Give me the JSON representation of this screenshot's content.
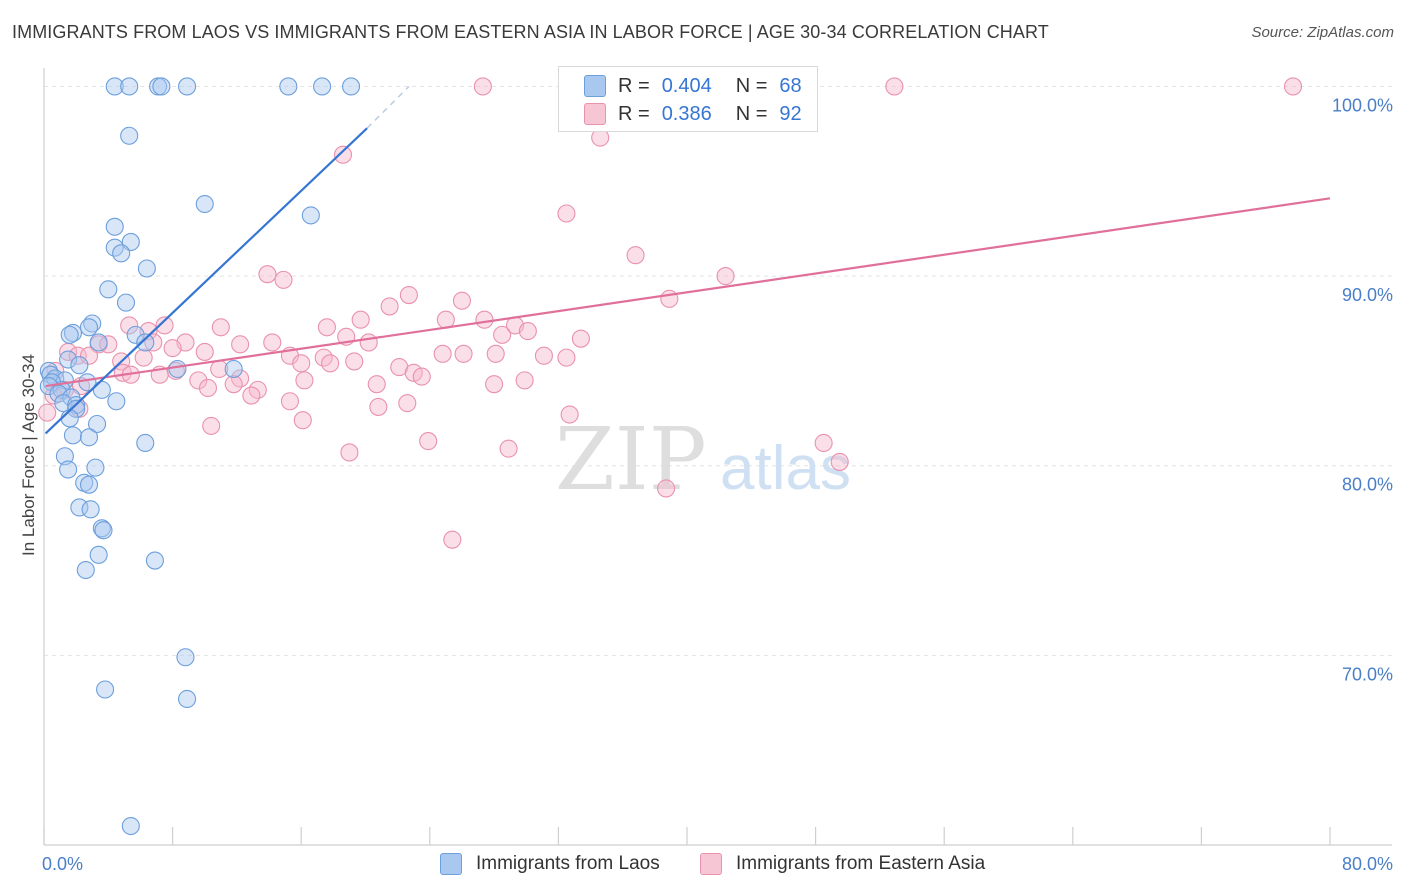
{
  "header": {
    "title": "IMMIGRANTS FROM LAOS VS IMMIGRANTS FROM EASTERN ASIA IN LABOR FORCE | AGE 30-34 CORRELATION CHART",
    "source": "Source: ZipAtlas.com"
  },
  "legend": {
    "r_label": "R =",
    "n_label": "N =",
    "series1": {
      "r": "0.404",
      "n": "68"
    },
    "series2": {
      "r": "0.386",
      "n": "92"
    }
  },
  "watermark": {
    "part1": "ZIP",
    "part2": "atlas"
  },
  "colors": {
    "laos_fill": "#a9c8f0",
    "laos_stroke": "#6c9fdc",
    "laos_line": "#3676d3",
    "easia_fill": "#f7b8cb",
    "easia_stroke": "#e992ad",
    "easia_line": "#e0709a",
    "tick_text": "#4a7fc8"
  },
  "chart_data": {
    "type": "scatter",
    "title": "IMMIGRANTS FROM LAOS VS IMMIGRANTS FROM EASTERN ASIA IN LABOR FORCE | AGE 30-34 CORRELATION CHART",
    "xlabel": "",
    "ylabel": "In Labor Force | Age 30-34",
    "xlim": [
      0,
      80
    ],
    "ylim": [
      60,
      101.5
    ],
    "x_tick_labels": {
      "min": "0.0%",
      "max": "80.0%"
    },
    "y_ticks": [
      {
        "value": 100,
        "label": "100.0%"
      },
      {
        "value": 90,
        "label": "90.0%"
      },
      {
        "value": 80,
        "label": "80.0%"
      },
      {
        "value": 70,
        "label": "70.0%"
      }
    ],
    "series": [
      {
        "name": "Immigrants from Laos",
        "r": 0.404,
        "n": 68,
        "trend": {
          "x0": 0.1,
          "y0": 81.7,
          "x1": 20.1,
          "y1": 97.8,
          "dash_to_x": 22.7,
          "dash_to_y": 100.0
        },
        "points": [
          [
            4.4,
            100.0
          ],
          [
            5.3,
            100.0
          ],
          [
            7.1,
            100.0
          ],
          [
            7.3,
            100.0
          ],
          [
            8.9,
            100.0
          ],
          [
            15.2,
            100.0
          ],
          [
            17.3,
            100.0
          ],
          [
            19.1,
            100.0
          ],
          [
            5.3,
            97.4
          ],
          [
            10.0,
            93.8
          ],
          [
            16.6,
            93.2
          ],
          [
            4.4,
            92.6
          ],
          [
            5.4,
            91.8
          ],
          [
            4.4,
            91.5
          ],
          [
            4.8,
            91.2
          ],
          [
            6.4,
            90.4
          ],
          [
            4.0,
            89.3
          ],
          [
            5.1,
            88.6
          ],
          [
            3.0,
            87.5
          ],
          [
            2.8,
            87.3
          ],
          [
            1.8,
            87.0
          ],
          [
            1.6,
            86.9
          ],
          [
            5.7,
            86.9
          ],
          [
            3.4,
            86.5
          ],
          [
            6.3,
            86.5
          ],
          [
            1.5,
            85.6
          ],
          [
            2.2,
            85.3
          ],
          [
            8.3,
            85.1
          ],
          [
            11.8,
            85.1
          ],
          [
            0.3,
            85.0
          ],
          [
            0.4,
            84.8
          ],
          [
            0.7,
            84.6
          ],
          [
            1.3,
            84.5
          ],
          [
            0.5,
            84.4
          ],
          [
            0.3,
            84.2
          ],
          [
            1.1,
            84.0
          ],
          [
            2.7,
            84.4
          ],
          [
            3.6,
            84.0
          ],
          [
            0.9,
            83.8
          ],
          [
            1.7,
            83.6
          ],
          [
            1.2,
            83.3
          ],
          [
            4.5,
            83.4
          ],
          [
            2.0,
            83.2
          ],
          [
            2.0,
            83.0
          ],
          [
            1.6,
            82.5
          ],
          [
            3.3,
            82.2
          ],
          [
            1.8,
            81.6
          ],
          [
            2.8,
            81.5
          ],
          [
            6.3,
            81.2
          ],
          [
            1.3,
            80.5
          ],
          [
            1.5,
            79.8
          ],
          [
            3.2,
            79.9
          ],
          [
            2.5,
            79.1
          ],
          [
            2.8,
            79.0
          ],
          [
            2.2,
            77.8
          ],
          [
            2.9,
            77.7
          ],
          [
            3.6,
            76.7
          ],
          [
            3.7,
            76.6
          ],
          [
            3.4,
            75.3
          ],
          [
            6.9,
            75.0
          ],
          [
            2.6,
            74.5
          ],
          [
            8.8,
            69.9
          ],
          [
            3.8,
            68.2
          ],
          [
            8.9,
            67.7
          ],
          [
            5.4,
            61.0
          ]
        ]
      },
      {
        "name": "Immigrants from Eastern Asia",
        "r": 0.386,
        "n": 92,
        "trend": {
          "x0": 0.1,
          "y0": 84.2,
          "x1": 80.0,
          "y1": 94.1
        },
        "points": [
          [
            27.3,
            100.0
          ],
          [
            37.2,
            100.0
          ],
          [
            52.9,
            100.0
          ],
          [
            77.7,
            100.0
          ],
          [
            34.6,
            97.3
          ],
          [
            18.6,
            96.4
          ],
          [
            32.5,
            93.3
          ],
          [
            36.8,
            91.1
          ],
          [
            13.9,
            90.1
          ],
          [
            14.9,
            89.8
          ],
          [
            42.4,
            90.0
          ],
          [
            22.7,
            89.0
          ],
          [
            38.9,
            88.8
          ],
          [
            26.0,
            88.7
          ],
          [
            21.5,
            88.4
          ],
          [
            25.0,
            87.7
          ],
          [
            27.4,
            87.7
          ],
          [
            19.7,
            87.7
          ],
          [
            5.3,
            87.4
          ],
          [
            7.5,
            87.4
          ],
          [
            11.0,
            87.3
          ],
          [
            17.6,
            87.3
          ],
          [
            29.3,
            87.4
          ],
          [
            6.5,
            87.1
          ],
          [
            30.1,
            87.1
          ],
          [
            28.5,
            86.9
          ],
          [
            33.4,
            86.7
          ],
          [
            18.8,
            86.8
          ],
          [
            6.8,
            86.5
          ],
          [
            8.8,
            86.5
          ],
          [
            12.2,
            86.4
          ],
          [
            14.2,
            86.5
          ],
          [
            20.2,
            86.5
          ],
          [
            3.4,
            86.4
          ],
          [
            4.0,
            86.4
          ],
          [
            8.0,
            86.2
          ],
          [
            10.0,
            86.0
          ],
          [
            1.5,
            86.0
          ],
          [
            2.1,
            85.8
          ],
          [
            2.8,
            85.8
          ],
          [
            6.2,
            85.7
          ],
          [
            4.8,
            85.5
          ],
          [
            15.3,
            85.8
          ],
          [
            17.4,
            85.7
          ],
          [
            19.3,
            85.5
          ],
          [
            24.8,
            85.9
          ],
          [
            26.1,
            85.9
          ],
          [
            28.1,
            85.9
          ],
          [
            31.1,
            85.8
          ],
          [
            32.5,
            85.7
          ],
          [
            16.0,
            85.4
          ],
          [
            17.8,
            85.4
          ],
          [
            22.1,
            85.2
          ],
          [
            10.9,
            85.1
          ],
          [
            8.2,
            85.0
          ],
          [
            0.7,
            85.0
          ],
          [
            23.0,
            84.9
          ],
          [
            23.5,
            84.7
          ],
          [
            4.9,
            84.9
          ],
          [
            5.4,
            84.8
          ],
          [
            7.2,
            84.8
          ],
          [
            12.2,
            84.6
          ],
          [
            16.2,
            84.5
          ],
          [
            28.0,
            84.3
          ],
          [
            29.9,
            84.5
          ],
          [
            9.6,
            84.5
          ],
          [
            11.8,
            84.3
          ],
          [
            20.7,
            84.3
          ],
          [
            2.3,
            84.2
          ],
          [
            10.2,
            84.1
          ],
          [
            13.3,
            84.0
          ],
          [
            1.3,
            84.0
          ],
          [
            12.9,
            83.7
          ],
          [
            0.6,
            83.7
          ],
          [
            15.3,
            83.4
          ],
          [
            20.8,
            83.1
          ],
          [
            22.6,
            83.3
          ],
          [
            2.2,
            83.0
          ],
          [
            16.1,
            82.4
          ],
          [
            32.7,
            82.7
          ],
          [
            10.4,
            82.1
          ],
          [
            23.9,
            81.3
          ],
          [
            48.5,
            81.2
          ],
          [
            28.9,
            80.9
          ],
          [
            19.0,
            80.7
          ],
          [
            49.5,
            80.2
          ],
          [
            38.7,
            78.8
          ],
          [
            25.4,
            76.1
          ],
          [
            0.2,
            82.8
          ]
        ]
      }
    ]
  },
  "bottom_legend": {
    "series1": "Immigrants from Laos",
    "series2": "Immigrants from Eastern Asia"
  }
}
